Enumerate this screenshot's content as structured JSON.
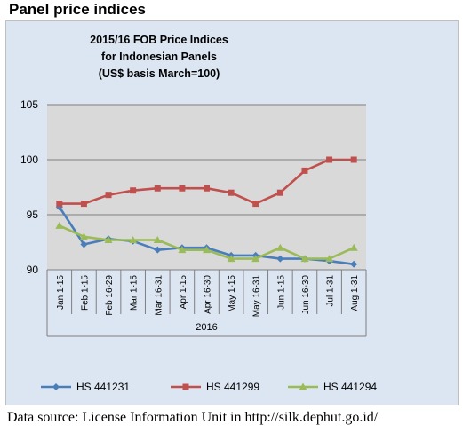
{
  "page": {
    "heading": "Panel price indices",
    "source_note": "Data source: License Information Unit in http://silk.dephut.go.id/"
  },
  "chart_data": {
    "type": "line",
    "title_lines": [
      "2015/16 FOB Price Indices",
      "for Indonesian Panels",
      "(US$ basis March=100)"
    ],
    "categories": [
      "Jan 1-15",
      "Feb 1-15",
      "Feb 16-29",
      "Mar 1-15",
      "Mar 16-31",
      "Apr 1-15",
      "Apr 16-30",
      "May 1-15",
      "May 16-31",
      "Jun 1-15",
      "Jun 16-30",
      "Jul 1-31",
      "Aug 1-31"
    ],
    "xlabel": "2016",
    "ylim": [
      90,
      105
    ],
    "yticks": [
      90,
      95,
      100,
      105
    ],
    "grid": true,
    "legend_position": "bottom",
    "plot_background": "#d9d9d9",
    "series": [
      {
        "name": "HS 441231",
        "color": "#4a7ebb",
        "marker": "diamond",
        "values": [
          95.7,
          92.3,
          92.8,
          92.6,
          91.8,
          92.0,
          92.0,
          91.3,
          91.3,
          91.0,
          91.0,
          90.8,
          90.5
        ]
      },
      {
        "name": "HS 441299",
        "color": "#c0504d",
        "marker": "square",
        "values": [
          96.0,
          96.0,
          96.8,
          97.2,
          97.4,
          97.4,
          97.4,
          97.0,
          96.0,
          97.0,
          99.0,
          100.0,
          100.0
        ]
      },
      {
        "name": "HS 441294",
        "color": "#9bbb59",
        "marker": "triangle",
        "values": [
          94.0,
          93.0,
          92.7,
          92.7,
          92.7,
          91.8,
          91.8,
          91.0,
          91.0,
          92.0,
          91.0,
          91.0,
          92.0
        ]
      }
    ]
  }
}
